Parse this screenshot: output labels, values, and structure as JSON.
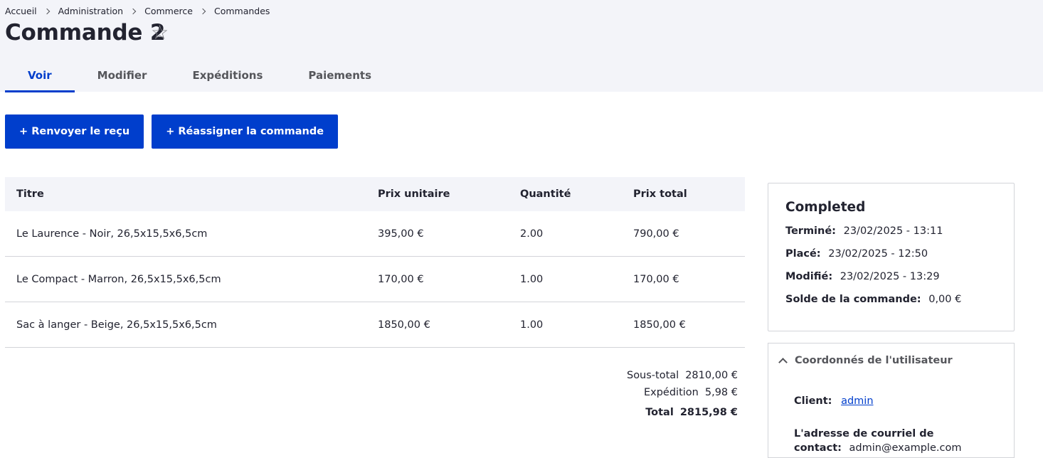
{
  "breadcrumb": [
    "Accueil",
    "Administration",
    "Commerce",
    "Commandes"
  ],
  "page": {
    "title": "Commande 2"
  },
  "tabs": [
    {
      "label": "Voir",
      "active": true
    },
    {
      "label": "Modifier",
      "active": false
    },
    {
      "label": "Expéditions",
      "active": false
    },
    {
      "label": "Paiements",
      "active": false
    }
  ],
  "actions": {
    "resend_receipt": "+ Renvoyer le reçu",
    "reassign_order": "+ Réassigner la commande"
  },
  "order_items": {
    "headers": [
      "Titre",
      "Prix unitaire",
      "Quantité",
      "Prix total"
    ],
    "rows": [
      [
        "Le Laurence - Noir, 26,5x15,5x6,5cm",
        "395,00 €",
        "2.00",
        "790,00 €"
      ],
      [
        "Le Compact - Marron, 26,5x15,5x6,5cm",
        "170,00 €",
        "1.00",
        "170,00 €"
      ],
      [
        "Sac à langer - Beige, 26,5x15,5x6,5cm",
        "1850,00 €",
        "1.00",
        "1850,00 €"
      ]
    ]
  },
  "totals": {
    "subtotal_label": "Sous-total",
    "subtotal": "2810,00 €",
    "shipping_label": "Expédition",
    "shipping": "5,98 €",
    "total_label": "Total",
    "total": "2815,98 €"
  },
  "status_card": {
    "state": "Completed",
    "completed_label": "Terminé:",
    "completed": "23/02/2025 - 13:11",
    "placed_label": "Placé:",
    "placed": "23/02/2025 - 12:50",
    "changed_label": "Modifié:",
    "changed": "23/02/2025 - 13:29",
    "balance_label": "Solde de la commande:",
    "balance": "0,00 €"
  },
  "customer_panel": {
    "title": "Coordonnés de l'utilisateur",
    "customer_label": "Client:",
    "customer": "admin",
    "email_label": "L'adresse de courriel de contact:",
    "email": "admin@example.com"
  },
  "colors": {
    "primary": "#003ecc",
    "header_bg": "#f3f4f9",
    "text": "#222330",
    "border": "#d3d4d9"
  }
}
